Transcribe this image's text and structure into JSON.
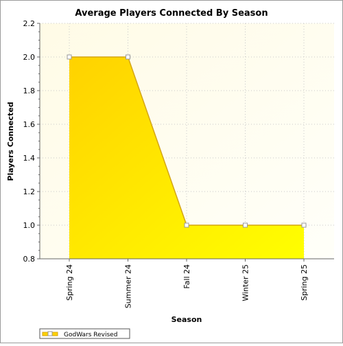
{
  "chart_data": {
    "type": "area",
    "title": "Average Players Connected By Season",
    "xlabel": "Season",
    "ylabel": "Players Connected",
    "categories": [
      "Spring 24",
      "Summer 24",
      "Fall 24",
      "Winter 25",
      "Spring 25"
    ],
    "series": [
      {
        "name": "GodWars Revised",
        "values": [
          2.0,
          2.0,
          1.0,
          1.0,
          1.0
        ]
      }
    ],
    "ylim": [
      0.8,
      2.2
    ],
    "yticks": [
      "0.8",
      "1.0",
      "1.2",
      "1.4",
      "1.6",
      "1.8",
      "2.0",
      "2.2"
    ],
    "grid": true,
    "legend": "bottom-left",
    "colors": {
      "area_light": "#ffff00",
      "area_dark": "#ffd400",
      "line": "#d4a514",
      "plot_bg_light": "#fffbe6",
      "plot_bg_dark": "#ffffff"
    }
  }
}
